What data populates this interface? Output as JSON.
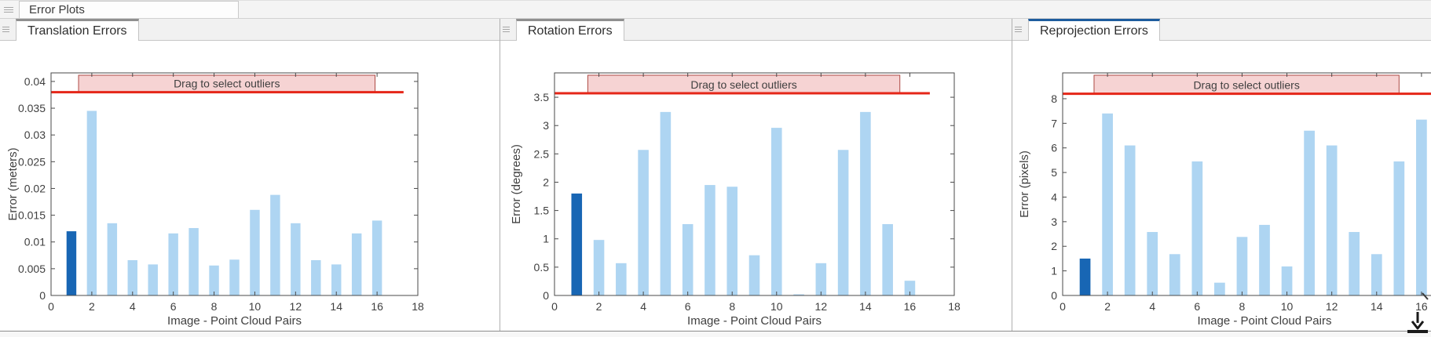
{
  "app": {
    "top_tab_label": "Error Plots"
  },
  "colors": {
    "bar_light": "#aed5f2",
    "bar_highlight": "#1866b4",
    "threshold_red": "#e52618",
    "banner_fill": "#f6d3d3",
    "banner_border": "#ad4a44",
    "axis_frame": "#4a4a4a",
    "tab_accent_active": "#1d5c9e",
    "tab_accent_inactive": "#8f8f8f"
  },
  "icons": {
    "tab_grip": "grip-icon",
    "bottom_right": "mouse-cursor-icon"
  },
  "panels": [
    {
      "tab_label": "Translation Errors",
      "active": false,
      "chart_data": {
        "type": "bar",
        "title": "",
        "xlabel": "Image - Point Cloud Pairs",
        "ylabel": "Error (meters)",
        "xlim": [
          0,
          18
        ],
        "ylim": [
          0,
          0.0416
        ],
        "xticks": [
          0,
          2,
          4,
          6,
          8,
          10,
          12,
          14,
          16,
          18
        ],
        "yticks": [
          0,
          0.005,
          0.01,
          0.015,
          0.02,
          0.025,
          0.03,
          0.035,
          0.04
        ],
        "ytick_labels": [
          "0",
          "0.005",
          "0.01",
          "0.015",
          "0.02",
          "0.025",
          "0.03",
          "0.035",
          "0.04"
        ],
        "categories": [
          1,
          2,
          3,
          4,
          5,
          6,
          7,
          8,
          9,
          10,
          11,
          12,
          13,
          14,
          15,
          16
        ],
        "values": [
          0.012,
          0.0345,
          0.0135,
          0.0066,
          0.0058,
          0.0116,
          0.0126,
          0.0056,
          0.0067,
          0.016,
          0.0188,
          0.0135,
          0.0066,
          0.0058,
          0.0116,
          0.014
        ],
        "highlight_index": 0,
        "threshold": 0.038,
        "threshold_x_end": 17.3,
        "banner": {
          "label": "Drag to select outliers",
          "x_start": 1.35,
          "x_end": 15.9
        },
        "grid": false,
        "legend": null
      }
    },
    {
      "tab_label": "Rotation Errors",
      "active": false,
      "chart_data": {
        "type": "bar",
        "title": "",
        "xlabel": "Image - Point Cloud Pairs",
        "ylabel": "Error (degrees)",
        "xlim": [
          0,
          18
        ],
        "ylim": [
          0,
          3.93
        ],
        "xticks": [
          0,
          2,
          4,
          6,
          8,
          10,
          12,
          14,
          16,
          18
        ],
        "yticks": [
          0,
          0.5,
          1,
          1.5,
          2,
          2.5,
          3,
          3.5
        ],
        "ytick_labels": [
          "0",
          "0.5",
          "1",
          "1.5",
          "2",
          "2.5",
          "3",
          "3.5"
        ],
        "categories": [
          1,
          2,
          3,
          4,
          5,
          6,
          7,
          8,
          9,
          10,
          11,
          12,
          13,
          14,
          15,
          16
        ],
        "values": [
          1.8,
          0.98,
          0.57,
          2.57,
          3.24,
          1.26,
          1.95,
          1.92,
          0.71,
          2.96,
          0.02,
          0.57,
          2.57,
          3.24,
          1.26,
          0.26
        ],
        "highlight_index": 0,
        "threshold": 3.57,
        "threshold_x_end": 16.9,
        "banner": {
          "label": "Drag to select outliers",
          "x_start": 1.5,
          "x_end": 15.55
        },
        "grid": false,
        "legend": null
      }
    },
    {
      "tab_label": "Reprojection Errors",
      "active": true,
      "chart_data": {
        "type": "bar",
        "title": "",
        "xlabel": "Image - Point Cloud Pairs",
        "ylabel": "Error (pixels)",
        "xlim": [
          0,
          18
        ],
        "ylim": [
          0,
          9.05
        ],
        "xticks": [
          0,
          2,
          4,
          6,
          8,
          10,
          12,
          14,
          16
        ],
        "yticks": [
          0,
          1,
          2,
          3,
          4,
          5,
          6,
          7,
          8
        ],
        "ytick_labels": [
          "0",
          "1",
          "2",
          "3",
          "4",
          "5",
          "6",
          "7",
          "8"
        ],
        "categories": [
          1,
          2,
          3,
          4,
          5,
          6,
          7,
          8,
          9,
          10,
          11,
          12,
          13,
          14,
          15,
          16
        ],
        "values": [
          1.5,
          7.4,
          6.1,
          2.58,
          1.68,
          5.45,
          0.52,
          2.38,
          2.87,
          1.18,
          6.7,
          6.1,
          2.58,
          1.68,
          5.45,
          7.15
        ],
        "highlight_index": 0,
        "threshold": 8.2,
        "threshold_x_end": 18,
        "banner": {
          "label": "Drag to select outliers",
          "x_start": 1.4,
          "x_end": 15.0
        },
        "grid": false,
        "legend": null
      }
    }
  ]
}
